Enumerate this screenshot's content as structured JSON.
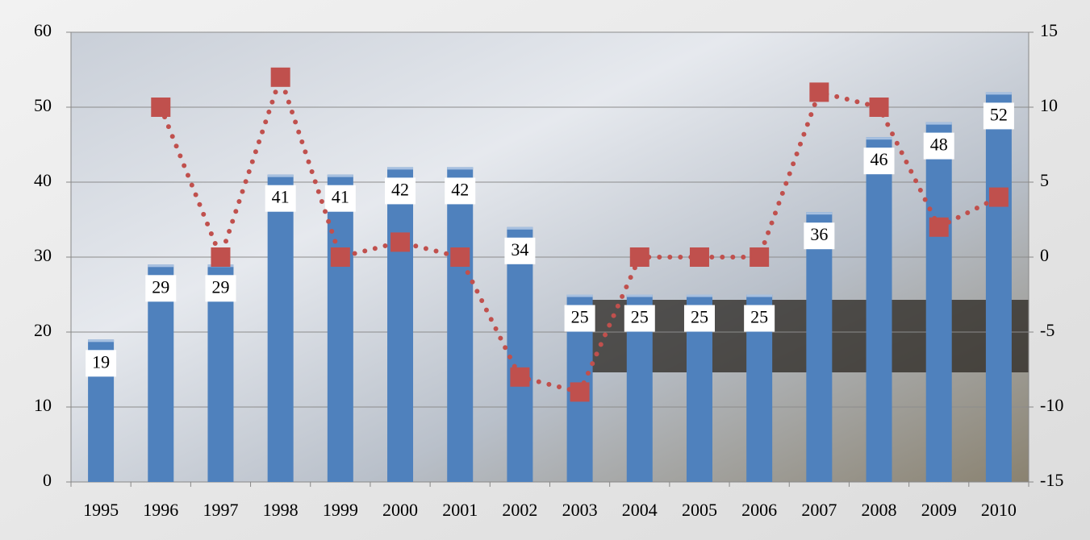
{
  "chart_data": {
    "type": "bar",
    "categories": [
      "1995",
      "1996",
      "1997",
      "1998",
      "1999",
      "2000",
      "2001",
      "2002",
      "2003",
      "2004",
      "2005",
      "2006",
      "2007",
      "2008",
      "2009",
      "2010"
    ],
    "series": [
      {
        "color": "#4f81bd",
        "values": [
          19,
          29,
          29,
          41,
          41,
          42,
          42,
          34,
          25,
          25,
          25,
          25,
          36,
          46,
          48,
          52
        ],
        "data_labels": true
      },
      {
        "type": "line",
        "axis": "y2",
        "color": "#c0504d",
        "values": [
          null,
          10,
          0,
          12,
          0,
          1,
          0,
          -8,
          -9,
          0,
          0,
          0,
          11,
          10,
          2,
          4
        ]
      }
    ],
    "ylim": [
      0,
      60
    ],
    "yticks": [
      0,
      10,
      20,
      30,
      40,
      50,
      60
    ],
    "y2lim": [
      -15,
      15
    ],
    "y2ticks": [
      -15,
      -10,
      -5,
      0,
      5,
      10,
      15
    ],
    "grid": true
  }
}
